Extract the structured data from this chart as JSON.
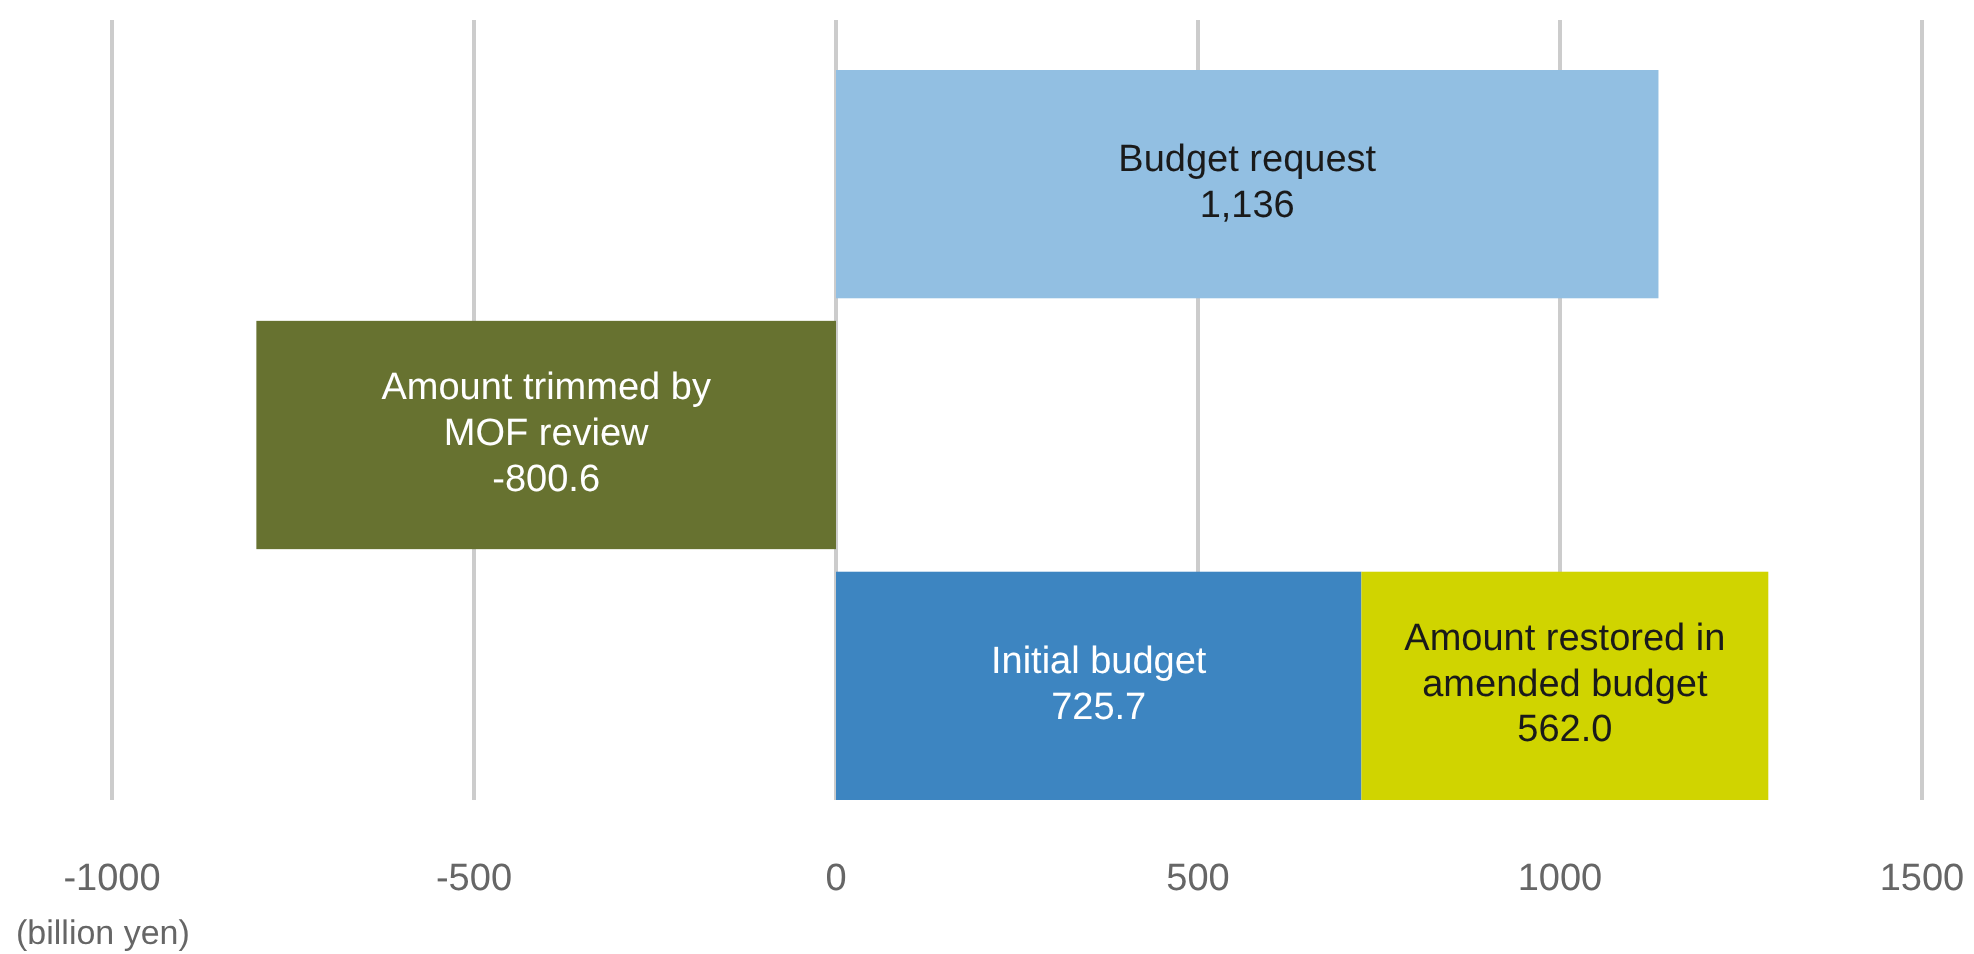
{
  "chart_data": {
    "type": "bar",
    "orientation": "horizontal",
    "stacked": true,
    "categories": [
      null,
      null,
      null
    ],
    "series": [
      {
        "name": "Budget request",
        "color": "#92bfe2",
        "values": [
          1136,
          null,
          null
        ],
        "value_labels": [
          "1,136",
          null,
          null
        ]
      },
      {
        "name": "Amount trimmed by MOF review",
        "color": "#677230",
        "values": [
          null,
          -800.6,
          null
        ],
        "value_labels": [
          null,
          "-800.6",
          null
        ]
      },
      {
        "name": "Initial budget",
        "color": "#3d85c1",
        "values": [
          null,
          null,
          725.7
        ],
        "value_labels": [
          null,
          null,
          "725.7"
        ]
      },
      {
        "name": "Amount restored in amended budget",
        "color": "#d0d400",
        "values": [
          null,
          null,
          562.0
        ],
        "value_labels": [
          null,
          null,
          "562.0"
        ]
      }
    ],
    "xlim": [
      -1000,
      1500
    ],
    "xticks": [
      -1000,
      -500,
      0,
      500,
      1000,
      1500
    ],
    "xlabel": "(billion yen)",
    "grid": "x"
  }
}
